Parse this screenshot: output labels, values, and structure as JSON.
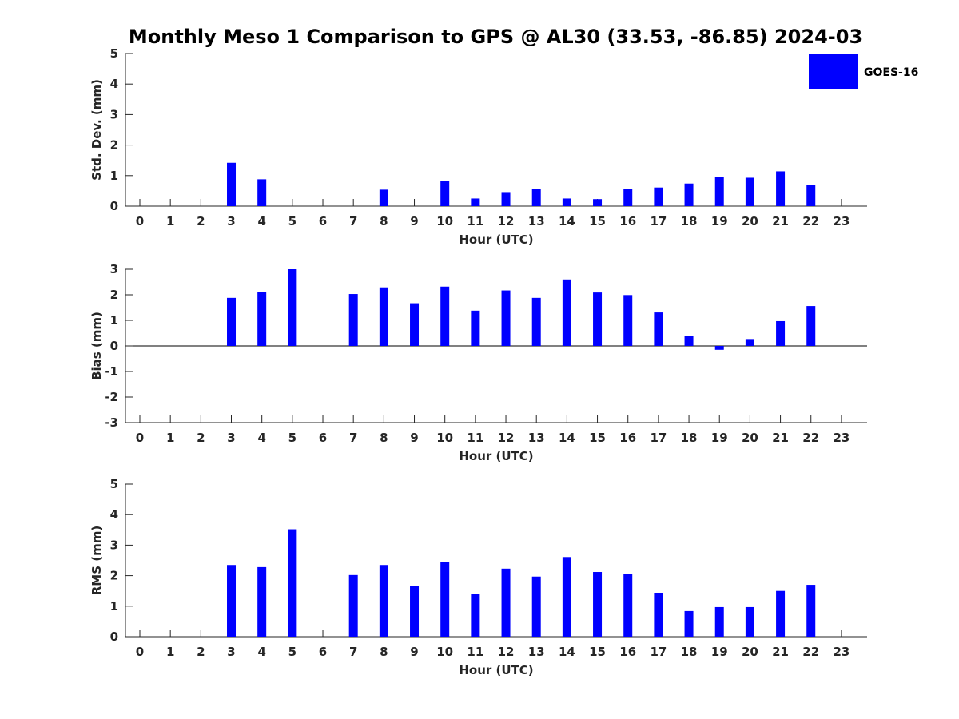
{
  "title": "Monthly Meso 1 Comparison to GPS @ AL30 (33.53, -86.85) 2024-03",
  "legend": {
    "label": "GOES-16",
    "color": "#0000ff"
  },
  "chart_data": [
    {
      "type": "bar",
      "name": "std-dev",
      "title": "",
      "xlabel": "Hour (UTC)",
      "ylabel": "Std. Dev. (mm)",
      "ylim": [
        0,
        5
      ],
      "yticks": [
        0,
        1,
        2,
        3,
        4,
        5
      ],
      "categories": [
        "0",
        "1",
        "2",
        "3",
        "4",
        "5",
        "6",
        "7",
        "8",
        "9",
        "10",
        "11",
        "12",
        "13",
        "14",
        "15",
        "16",
        "17",
        "18",
        "19",
        "20",
        "21",
        "22",
        "23"
      ],
      "series": [
        {
          "name": "GOES-16",
          "values": [
            null,
            null,
            null,
            1.42,
            0.88,
            null,
            null,
            null,
            0.54,
            null,
            0.82,
            0.25,
            0.46,
            0.56,
            0.25,
            0.23,
            0.56,
            0.61,
            0.74,
            0.96,
            0.93,
            1.14,
            0.69,
            null
          ]
        }
      ]
    },
    {
      "type": "bar",
      "name": "bias",
      "title": "",
      "xlabel": "Hour (UTC)",
      "ylabel": "Bias (mm)",
      "ylim": [
        -3,
        3
      ],
      "yticks": [
        -3,
        -2,
        -1,
        0,
        1,
        2,
        3
      ],
      "categories": [
        "0",
        "1",
        "2",
        "3",
        "4",
        "5",
        "6",
        "7",
        "8",
        "9",
        "10",
        "11",
        "12",
        "13",
        "14",
        "15",
        "16",
        "17",
        "18",
        "19",
        "20",
        "21",
        "22",
        "23"
      ],
      "series": [
        {
          "name": "GOES-16",
          "values": [
            null,
            null,
            null,
            1.88,
            2.1,
            3.0,
            null,
            2.03,
            2.29,
            1.67,
            2.32,
            1.38,
            2.17,
            1.88,
            2.6,
            2.09,
            1.99,
            1.31,
            0.4,
            -0.15,
            0.27,
            0.97,
            1.56,
            null
          ]
        }
      ]
    },
    {
      "type": "bar",
      "name": "rms",
      "title": "",
      "xlabel": "Hour (UTC)",
      "ylabel": "RMS (mm)",
      "ylim": [
        0,
        5
      ],
      "yticks": [
        0,
        1,
        2,
        3,
        4,
        5
      ],
      "categories": [
        "0",
        "1",
        "2",
        "3",
        "4",
        "5",
        "6",
        "7",
        "8",
        "9",
        "10",
        "11",
        "12",
        "13",
        "14",
        "15",
        "16",
        "17",
        "18",
        "19",
        "20",
        "21",
        "22",
        "23"
      ],
      "series": [
        {
          "name": "GOES-16",
          "values": [
            null,
            null,
            null,
            2.35,
            2.28,
            3.52,
            null,
            2.02,
            2.35,
            1.65,
            2.46,
            1.39,
            2.23,
            1.97,
            2.61,
            2.12,
            2.06,
            1.44,
            0.84,
            0.97,
            0.97,
            1.5,
            1.7,
            null
          ]
        }
      ]
    }
  ]
}
